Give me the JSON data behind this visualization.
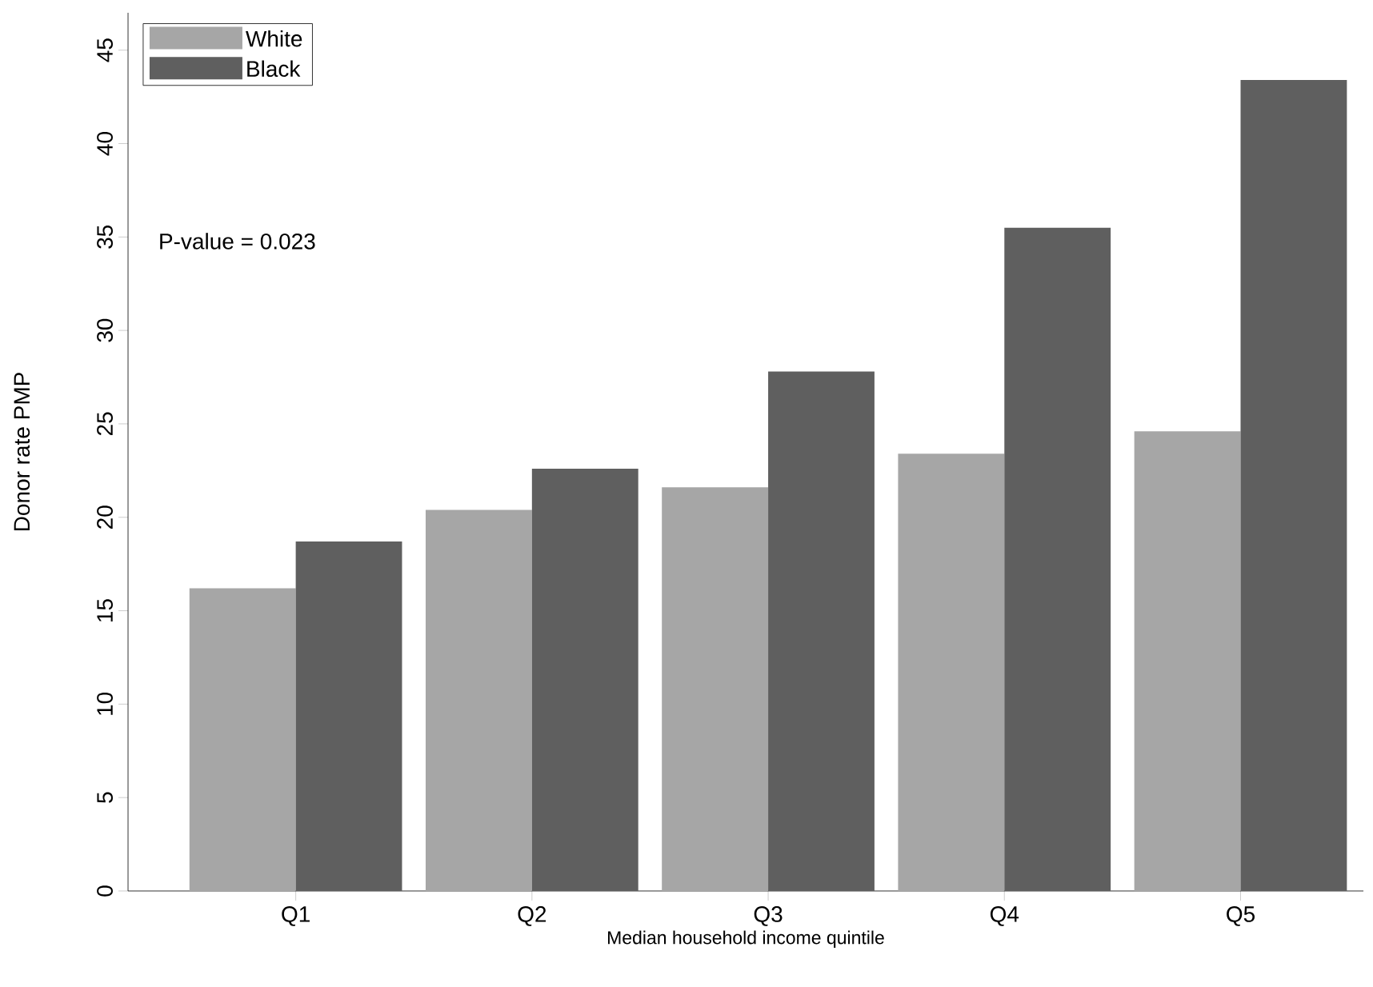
{
  "chart_data": {
    "type": "bar",
    "xlabel": "Median  household  income  quintile",
    "ylabel": "Donor rate PMP",
    "categories": [
      "Q1",
      "Q2",
      "Q3",
      "Q4",
      "Q5"
    ],
    "series": [
      {
        "name": "White",
        "color": "#a6a6a6",
        "values": [
          16.2,
          20.4,
          21.6,
          23.4,
          24.6
        ]
      },
      {
        "name": "Black",
        "color": "#5f5f5f",
        "values": [
          18.7,
          22.6,
          27.8,
          35.5,
          43.4
        ]
      }
    ],
    "ylim": [
      0,
      47
    ],
    "yticks": [
      0,
      5,
      10,
      15,
      20,
      25,
      30,
      35,
      40,
      45
    ],
    "legend": "top left",
    "annotations": [
      "P-value = 0.023"
    ]
  }
}
